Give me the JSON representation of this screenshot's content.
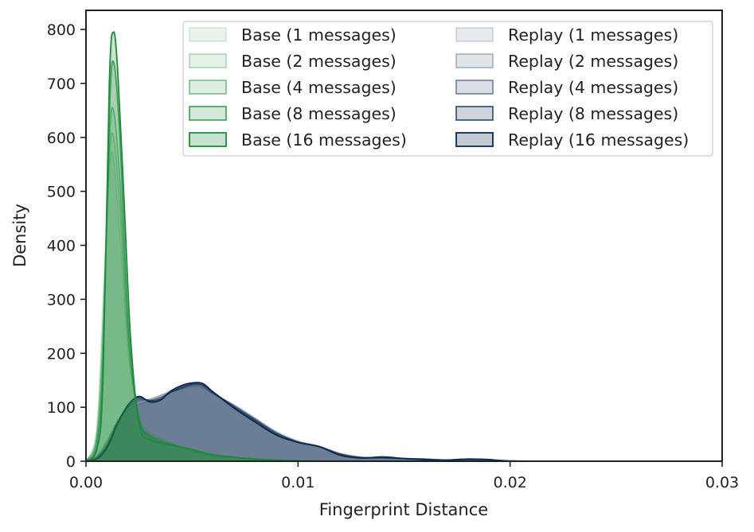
{
  "chart_data": {
    "type": "area",
    "title": "",
    "xlabel": "Fingerprint Distance",
    "ylabel": "Density",
    "xlim": [
      0.0,
      0.03
    ],
    "ylim": [
      0,
      800
    ],
    "x_ticks": [
      0.0,
      0.01,
      0.02,
      0.03
    ],
    "x_tick_labels": [
      "0.00",
      "0.01",
      "0.02",
      "0.03"
    ],
    "y_ticks": [
      0,
      100,
      200,
      300,
      400,
      500,
      600,
      700,
      800
    ],
    "y_tick_labels": [
      "0",
      "100",
      "200",
      "300",
      "400",
      "500",
      "600",
      "700",
      "800"
    ],
    "grid": false,
    "legend_position": "top-right",
    "legend_columns": 2,
    "series": [
      {
        "name": "Base (1 messages)",
        "group": "base",
        "color": "#1f8a3c",
        "fill_opacity": 0.1,
        "line_opacity": 0.15,
        "points": [
          [
            0.0,
            0
          ],
          [
            0.0005,
            60
          ],
          [
            0.0008,
            300
          ],
          [
            0.0011,
            540
          ],
          [
            0.0013,
            560
          ],
          [
            0.0016,
            420
          ],
          [
            0.002,
            200
          ],
          [
            0.0025,
            85
          ],
          [
            0.003,
            55
          ],
          [
            0.004,
            35
          ],
          [
            0.005,
            20
          ],
          [
            0.006,
            10
          ],
          [
            0.008,
            4
          ],
          [
            0.01,
            1
          ],
          [
            0.012,
            0
          ]
        ]
      },
      {
        "name": "Base (2 messages)",
        "group": "base",
        "color": "#1f8a3c",
        "fill_opacity": 0.12,
        "line_opacity": 0.3,
        "points": [
          [
            0.0,
            0
          ],
          [
            0.0005,
            50
          ],
          [
            0.0008,
            260
          ],
          [
            0.0011,
            560
          ],
          [
            0.0013,
            600
          ],
          [
            0.0016,
            470
          ],
          [
            0.002,
            210
          ],
          [
            0.0025,
            80
          ],
          [
            0.003,
            50
          ],
          [
            0.004,
            33
          ],
          [
            0.005,
            20
          ],
          [
            0.006,
            10
          ],
          [
            0.008,
            4
          ],
          [
            0.01,
            1
          ],
          [
            0.012,
            0
          ]
        ]
      },
      {
        "name": "Base (4 messages)",
        "group": "base",
        "color": "#1f8a3c",
        "fill_opacity": 0.15,
        "line_opacity": 0.5,
        "points": [
          [
            0.0,
            0
          ],
          [
            0.0005,
            40
          ],
          [
            0.0008,
            220
          ],
          [
            0.0011,
            590
          ],
          [
            0.0013,
            650
          ],
          [
            0.0016,
            520
          ],
          [
            0.002,
            230
          ],
          [
            0.0025,
            80
          ],
          [
            0.003,
            48
          ],
          [
            0.004,
            32
          ],
          [
            0.005,
            22
          ],
          [
            0.006,
            12
          ],
          [
            0.008,
            4
          ],
          [
            0.01,
            1
          ],
          [
            0.012,
            0
          ]
        ]
      },
      {
        "name": "Base (8 messages)",
        "group": "base",
        "color": "#1f8a3c",
        "fill_opacity": 0.2,
        "line_opacity": 0.75,
        "points": [
          [
            0.0,
            0
          ],
          [
            0.0005,
            30
          ],
          [
            0.0008,
            180
          ],
          [
            0.0011,
            640
          ],
          [
            0.0013,
            740
          ],
          [
            0.0016,
            600
          ],
          [
            0.002,
            250
          ],
          [
            0.0025,
            80
          ],
          [
            0.003,
            45
          ],
          [
            0.004,
            30
          ],
          [
            0.005,
            22
          ],
          [
            0.006,
            12
          ],
          [
            0.008,
            4
          ],
          [
            0.01,
            1
          ],
          [
            0.012,
            0
          ]
        ]
      },
      {
        "name": "Base (16 messages)",
        "group": "base",
        "color": "#1f8a3c",
        "fill_opacity": 0.25,
        "line_opacity": 1.0,
        "points": [
          [
            0.0,
            0
          ],
          [
            0.0005,
            20
          ],
          [
            0.0008,
            150
          ],
          [
            0.0011,
            700
          ],
          [
            0.0013,
            795
          ],
          [
            0.0015,
            720
          ],
          [
            0.0018,
            480
          ],
          [
            0.0021,
            230
          ],
          [
            0.0025,
            70
          ],
          [
            0.003,
            40
          ],
          [
            0.004,
            30
          ],
          [
            0.005,
            22
          ],
          [
            0.006,
            12
          ],
          [
            0.008,
            4
          ],
          [
            0.01,
            1
          ],
          [
            0.012,
            0
          ]
        ]
      },
      {
        "name": "Replay (1 messages)",
        "group": "replay",
        "color": "#0b2a4f",
        "fill_opacity": 0.1,
        "line_opacity": 0.15,
        "points": [
          [
            0.0,
            0
          ],
          [
            0.0005,
            10
          ],
          [
            0.001,
            40
          ],
          [
            0.0015,
            75
          ],
          [
            0.002,
            95
          ],
          [
            0.0025,
            105
          ],
          [
            0.003,
            112
          ],
          [
            0.0035,
            120
          ],
          [
            0.004,
            128
          ],
          [
            0.0045,
            133
          ],
          [
            0.005,
            138
          ],
          [
            0.0055,
            136
          ],
          [
            0.006,
            125
          ],
          [
            0.007,
            105
          ],
          [
            0.008,
            80
          ],
          [
            0.009,
            55
          ],
          [
            0.01,
            38
          ],
          [
            0.011,
            28
          ],
          [
            0.012,
            15
          ],
          [
            0.013,
            8
          ],
          [
            0.014,
            6
          ],
          [
            0.015,
            5
          ],
          [
            0.016,
            4
          ],
          [
            0.017,
            2
          ],
          [
            0.018,
            1
          ],
          [
            0.02,
            0
          ]
        ]
      },
      {
        "name": "Replay (2 messages)",
        "group": "replay",
        "color": "#0b2a4f",
        "fill_opacity": 0.12,
        "line_opacity": 0.3,
        "points": [
          [
            0.0,
            0
          ],
          [
            0.0005,
            8
          ],
          [
            0.001,
            35
          ],
          [
            0.0015,
            75
          ],
          [
            0.002,
            100
          ],
          [
            0.0025,
            112
          ],
          [
            0.003,
            115
          ],
          [
            0.0035,
            122
          ],
          [
            0.004,
            130
          ],
          [
            0.0045,
            135
          ],
          [
            0.005,
            140
          ],
          [
            0.0055,
            138
          ],
          [
            0.006,
            125
          ],
          [
            0.007,
            103
          ],
          [
            0.008,
            78
          ],
          [
            0.009,
            53
          ],
          [
            0.01,
            36
          ],
          [
            0.011,
            27
          ],
          [
            0.012,
            14
          ],
          [
            0.013,
            7
          ],
          [
            0.014,
            6
          ],
          [
            0.015,
            5
          ],
          [
            0.016,
            4
          ],
          [
            0.017,
            2
          ],
          [
            0.018,
            1
          ],
          [
            0.02,
            0
          ]
        ]
      },
      {
        "name": "Replay (4 messages)",
        "group": "replay",
        "color": "#0b2a4f",
        "fill_opacity": 0.15,
        "line_opacity": 0.5,
        "points": [
          [
            0.0,
            0
          ],
          [
            0.0005,
            6
          ],
          [
            0.001,
            30
          ],
          [
            0.0015,
            72
          ],
          [
            0.002,
            102
          ],
          [
            0.0025,
            115
          ],
          [
            0.003,
            113
          ],
          [
            0.0035,
            118
          ],
          [
            0.004,
            128
          ],
          [
            0.0045,
            135
          ],
          [
            0.005,
            142
          ],
          [
            0.0055,
            140
          ],
          [
            0.006,
            126
          ],
          [
            0.007,
            102
          ],
          [
            0.008,
            77
          ],
          [
            0.009,
            52
          ],
          [
            0.01,
            36
          ],
          [
            0.011,
            27
          ],
          [
            0.012,
            13
          ],
          [
            0.013,
            7
          ],
          [
            0.014,
            7
          ],
          [
            0.015,
            5
          ],
          [
            0.016,
            4
          ],
          [
            0.017,
            2
          ],
          [
            0.018,
            3
          ],
          [
            0.019,
            2
          ],
          [
            0.02,
            0
          ]
        ]
      },
      {
        "name": "Replay (8 messages)",
        "group": "replay",
        "color": "#0b2a4f",
        "fill_opacity": 0.2,
        "line_opacity": 0.75,
        "points": [
          [
            0.0,
            0
          ],
          [
            0.0005,
            5
          ],
          [
            0.001,
            28
          ],
          [
            0.0015,
            72
          ],
          [
            0.002,
            105
          ],
          [
            0.0025,
            118
          ],
          [
            0.003,
            112
          ],
          [
            0.0035,
            115
          ],
          [
            0.004,
            128
          ],
          [
            0.0045,
            137
          ],
          [
            0.005,
            143
          ],
          [
            0.0055,
            142
          ],
          [
            0.006,
            128
          ],
          [
            0.007,
            100
          ],
          [
            0.008,
            75
          ],
          [
            0.009,
            50
          ],
          [
            0.01,
            35
          ],
          [
            0.011,
            27
          ],
          [
            0.012,
            12
          ],
          [
            0.013,
            6
          ],
          [
            0.014,
            7
          ],
          [
            0.015,
            5
          ],
          [
            0.016,
            3
          ],
          [
            0.017,
            2
          ],
          [
            0.018,
            4
          ],
          [
            0.019,
            3
          ],
          [
            0.02,
            0
          ]
        ]
      },
      {
        "name": "Replay (16 messages)",
        "group": "replay",
        "color": "#0b2a4f",
        "fill_opacity": 0.25,
        "line_opacity": 1.0,
        "points": [
          [
            0.0,
            0
          ],
          [
            0.0005,
            4
          ],
          [
            0.001,
            25
          ],
          [
            0.0015,
            70
          ],
          [
            0.002,
            105
          ],
          [
            0.0025,
            120
          ],
          [
            0.003,
            110
          ],
          [
            0.0035,
            113
          ],
          [
            0.004,
            130
          ],
          [
            0.0045,
            140
          ],
          [
            0.005,
            145
          ],
          [
            0.0055,
            144
          ],
          [
            0.006,
            128
          ],
          [
            0.007,
            98
          ],
          [
            0.008,
            72
          ],
          [
            0.009,
            48
          ],
          [
            0.01,
            35
          ],
          [
            0.011,
            27
          ],
          [
            0.012,
            11
          ],
          [
            0.013,
            6
          ],
          [
            0.014,
            8
          ],
          [
            0.015,
            5
          ],
          [
            0.016,
            3
          ],
          [
            0.017,
            2
          ],
          [
            0.018,
            4
          ],
          [
            0.019,
            3
          ],
          [
            0.0195,
            1
          ],
          [
            0.021,
            0
          ]
        ]
      }
    ]
  }
}
